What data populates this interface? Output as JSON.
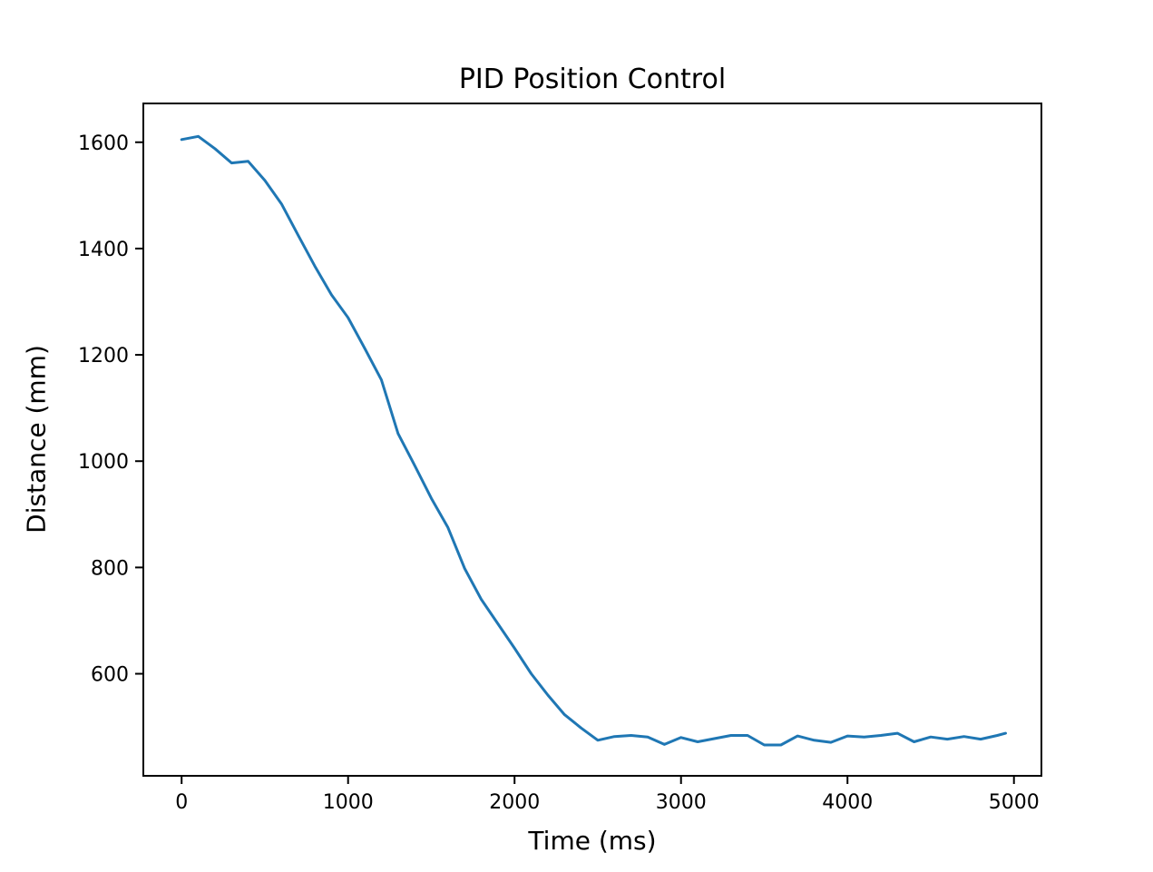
{
  "chart_data": {
    "type": "line",
    "title": "PID Position Control",
    "xlabel": "Time (ms)",
    "ylabel": "Distance (mm)",
    "x": [
      0,
      100,
      200,
      300,
      400,
      500,
      600,
      700,
      800,
      900,
      1000,
      1100,
      1200,
      1300,
      1400,
      1500,
      1600,
      1700,
      1800,
      1900,
      2000,
      2100,
      2200,
      2300,
      2400,
      2500,
      2600,
      2700,
      2800,
      2900,
      3000,
      3100,
      3200,
      3300,
      3400,
      3500,
      3600,
      3700,
      3800,
      3900,
      4000,
      4100,
      4200,
      4300,
      4400,
      4500,
      4600,
      4700,
      4800,
      4900,
      4950
    ],
    "y": [
      1605,
      1611,
      1588,
      1561,
      1564,
      1528,
      1484,
      1425,
      1367,
      1313,
      1270,
      1212,
      1153,
      1052,
      992,
      930,
      875,
      798,
      740,
      694,
      648,
      600,
      560,
      523,
      498,
      475,
      482,
      484,
      481,
      467,
      480,
      472,
      478,
      484,
      484,
      466,
      466,
      483,
      475,
      471,
      483,
      481,
      484,
      488,
      472,
      481,
      477,
      482,
      477,
      484,
      488
    ],
    "x_ticks": [
      0,
      1000,
      2000,
      3000,
      4000,
      5000
    ],
    "y_ticks": [
      600,
      800,
      1000,
      1200,
      1400,
      1600
    ],
    "xlim": [
      -230,
      5165
    ],
    "ylim": [
      408,
      1673
    ],
    "grid": false,
    "legend_position": "none",
    "line_color": "#1f77b4",
    "axis_color": "#000000",
    "text_color": "#000000",
    "background_color": "#ffffff",
    "line_width": 3
  }
}
